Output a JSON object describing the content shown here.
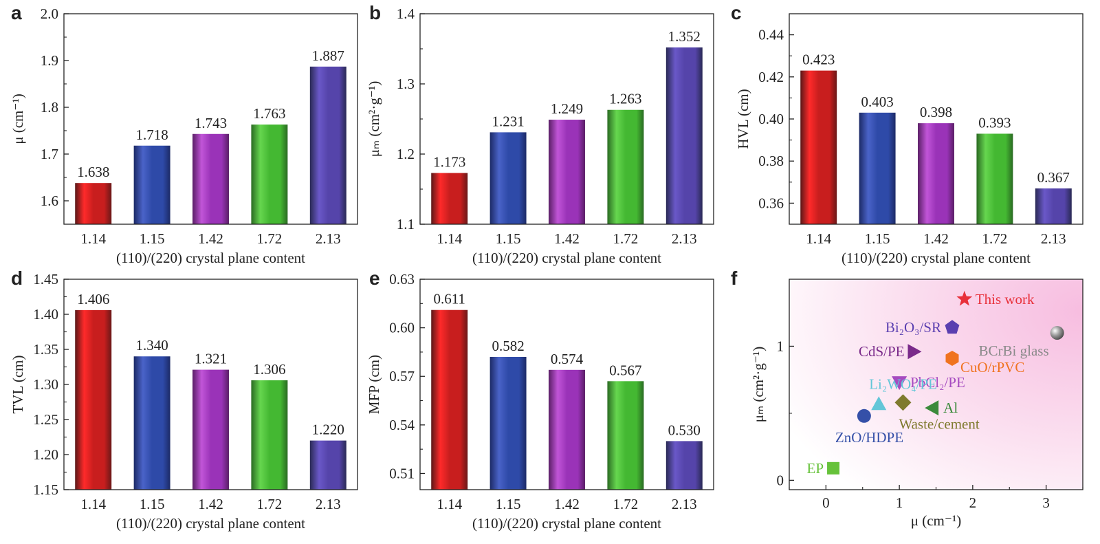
{
  "panels": [
    {
      "id": "a",
      "ylabel": "μ (cm⁻¹)"
    },
    {
      "id": "b",
      "ylabel": "μₘ (cm²·g⁻¹)"
    },
    {
      "id": "c",
      "ylabel": "HVL (cm)"
    },
    {
      "id": "d",
      "ylabel": "TVL (cm)"
    },
    {
      "id": "e",
      "ylabel": "MFP (cm)"
    },
    {
      "id": "f",
      "ylabel": "μₘ (cm²·g⁻¹)",
      "xlabel": "μ (cm⁻¹)"
    }
  ],
  "colors": {
    "red": "#ee2b2b",
    "blue": "#3a4fa8",
    "magenta": "#a33cbd",
    "green": "#4fc63d",
    "purple": "#5b4ab0"
  },
  "chart_data": [
    {
      "type": "bar",
      "panel": "a",
      "categories": [
        "1.14",
        "1.15",
        "1.42",
        "1.72",
        "2.13"
      ],
      "values": [
        1.638,
        1.718,
        1.743,
        1.763,
        1.887
      ],
      "labels": [
        "1.638",
        "1.718",
        "1.743",
        "1.763",
        "1.887"
      ],
      "ylim": [
        1.55,
        2.0
      ],
      "yticks": [
        "1.6",
        "1.7",
        "1.8",
        "1.9",
        "2.0"
      ],
      "xlabel": "(110)/(220) crystal plane content",
      "ylabel": "μ (cm⁻¹)"
    },
    {
      "type": "bar",
      "panel": "b",
      "categories": [
        "1.14",
        "1.15",
        "1.42",
        "1.72",
        "2.13"
      ],
      "values": [
        1.173,
        1.231,
        1.249,
        1.263,
        1.352
      ],
      "labels": [
        "1.173",
        "1.231",
        "1.249",
        "1.263",
        "1.352"
      ],
      "ylim": [
        1.1,
        1.4
      ],
      "yticks": [
        "1.1",
        "1.2",
        "1.3",
        "1.4"
      ],
      "xlabel": "(110)/(220) crystal plane content",
      "ylabel": "μₘ (cm²·g⁻¹)"
    },
    {
      "type": "bar",
      "panel": "c",
      "categories": [
        "1.14",
        "1.15",
        "1.42",
        "1.72",
        "2.13"
      ],
      "values": [
        0.423,
        0.403,
        0.398,
        0.393,
        0.367
      ],
      "labels": [
        "0.423",
        "0.403",
        "0.398",
        "0.393",
        "0.367"
      ],
      "ylim": [
        0.35,
        0.45
      ],
      "yticks": [
        "0.36",
        "0.38",
        "0.40",
        "0.42",
        "0.44"
      ],
      "xlabel": "(110)/(220) crystal plane content",
      "ylabel": "HVL (cm)"
    },
    {
      "type": "bar",
      "panel": "d",
      "categories": [
        "1.14",
        "1.15",
        "1.42",
        "1.72",
        "2.13"
      ],
      "values": [
        1.406,
        1.34,
        1.321,
        1.306,
        1.22
      ],
      "labels": [
        "1.406",
        "1.340",
        "1.321",
        "1.306",
        "1.220"
      ],
      "ylim": [
        1.15,
        1.45
      ],
      "yticks": [
        "1.15",
        "1.20",
        "1.25",
        "1.30",
        "1.35",
        "1.40",
        "1.45"
      ],
      "xlabel": "(110)/(220) crystal plane content",
      "ylabel": "TVL (cm)"
    },
    {
      "type": "bar",
      "panel": "e",
      "categories": [
        "1.14",
        "1.15",
        "1.42",
        "1.72",
        "2.13"
      ],
      "values": [
        0.611,
        0.582,
        0.574,
        0.567,
        0.53
      ],
      "labels": [
        "0.611",
        "0.582",
        "0.574",
        "0.567",
        "0.530"
      ],
      "ylim": [
        0.5,
        0.63
      ],
      "yticks": [
        "0.51",
        "0.54",
        "0.57",
        "0.60",
        "0.63"
      ],
      "xlabel": "(110)/(220) crystal plane content",
      "ylabel": "MFP (cm)"
    },
    {
      "type": "scatter",
      "panel": "f",
      "xlim": [
        -0.5,
        3.5
      ],
      "ylim": [
        -0.07,
        1.5
      ],
      "xticks": [
        "0",
        "1",
        "2",
        "3"
      ],
      "yticks": [
        "0",
        "1"
      ],
      "xlabel": "μ (cm⁻¹)",
      "ylabel": "μₘ (cm²·g⁻¹)",
      "points": [
        {
          "label": "This work",
          "x": 1.887,
          "y": 1.352,
          "marker": "star",
          "color": "#e8303a"
        },
        {
          "label": "Bi₂O₃/SR",
          "x": 1.72,
          "y": 1.14,
          "marker": "pentagon",
          "color": "#5a3fb0"
        },
        {
          "label": "BCrBi glass",
          "x": 3.15,
          "y": 1.1,
          "marker": "sphere",
          "color": "#8a8a8a"
        },
        {
          "label": "CdS/PE",
          "x": 1.2,
          "y": 0.96,
          "marker": "triangle-right",
          "color": "#7a2a8a"
        },
        {
          "label": "CuO/rPVC",
          "x": 1.72,
          "y": 0.91,
          "marker": "hexagon",
          "color": "#f0731f"
        },
        {
          "label": "PbCl₂/PE",
          "x": 1.0,
          "y": 0.73,
          "marker": "triangle-down",
          "color": "#a64bc0"
        },
        {
          "label": "Li₂WO₄/PE",
          "x": 0.72,
          "y": 0.57,
          "marker": "triangle-up",
          "color": "#63c6d8"
        },
        {
          "label": "Waste/cement",
          "x": 1.05,
          "y": 0.58,
          "marker": "diamond",
          "color": "#7f7a2e"
        },
        {
          "label": "Al",
          "x": 1.45,
          "y": 0.54,
          "marker": "triangle-left",
          "color": "#3b8a3b"
        },
        {
          "label": "ZnO/HDPE",
          "x": 0.52,
          "y": 0.48,
          "marker": "circle",
          "color": "#3550a8"
        },
        {
          "label": "EP",
          "x": 0.1,
          "y": 0.09,
          "marker": "square",
          "color": "#66c23a"
        }
      ]
    }
  ]
}
